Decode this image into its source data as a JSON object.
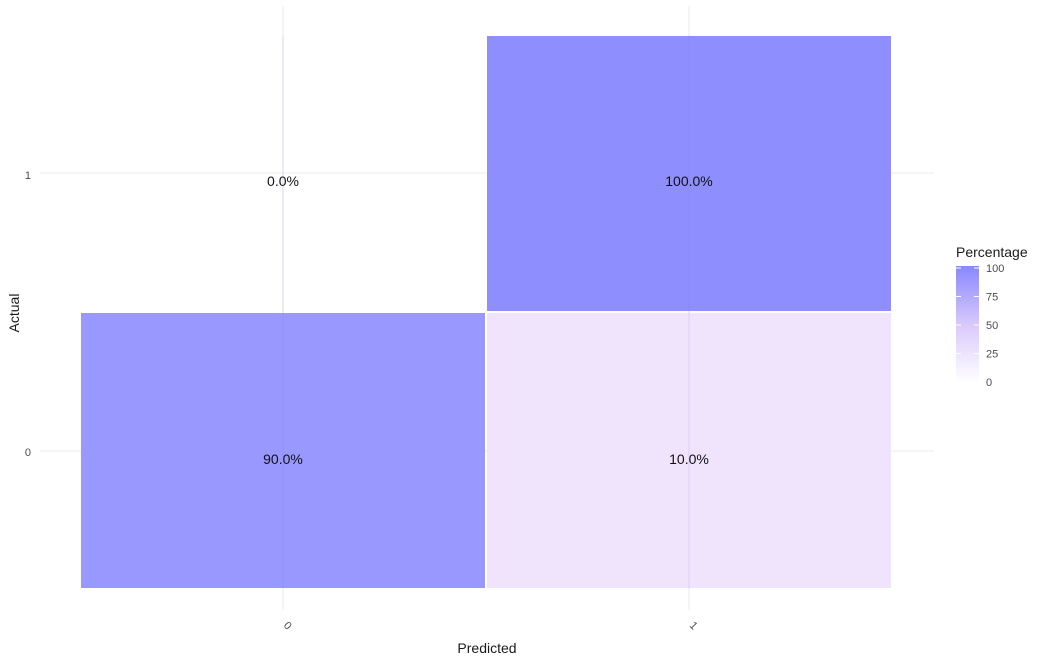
{
  "chart_data": {
    "type": "heatmap",
    "x_categories": [
      "0",
      "1"
    ],
    "y_categories": [
      "0",
      "1"
    ],
    "xlabel": "Predicted",
    "ylabel": "Actual",
    "cells": [
      {
        "predicted": "0",
        "actual": "1",
        "value": 0.0,
        "label": "0.0%"
      },
      {
        "predicted": "1",
        "actual": "1",
        "value": 100.0,
        "label": "100.0%"
      },
      {
        "predicted": "0",
        "actual": "0",
        "value": 90.0,
        "label": "90.0%"
      },
      {
        "predicted": "1",
        "actual": "0",
        "value": 10.0,
        "label": "10.0%"
      }
    ],
    "legend": {
      "title": "Percentage",
      "ticks": [
        "0",
        "25",
        "50",
        "75",
        "100"
      ],
      "range": [
        0,
        100
      ],
      "position": "right"
    },
    "colors": {
      "low": "#ffffff",
      "mid": "#efe3fd",
      "high": "#8888ff"
    },
    "grid": true
  }
}
